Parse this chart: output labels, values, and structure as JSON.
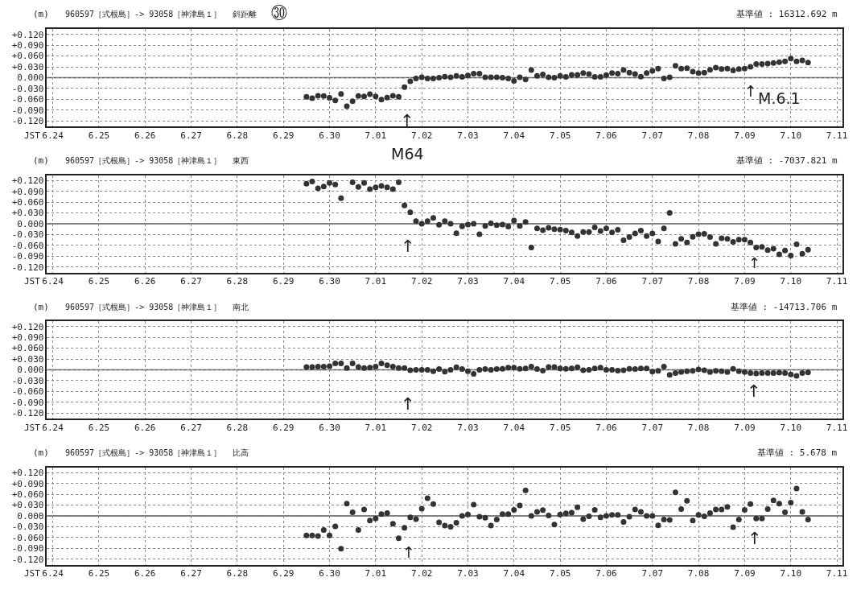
{
  "chart_data": [
    {
      "type": "scatter",
      "title": "960597［式根島］-> 93058［神津島１］",
      "subtitle": "斜距離",
      "ylabel": "(m)",
      "xlabel": "JST",
      "annotations": [
        "基準値 : 16312.692 m",
        "㉚",
        "↑",
        "M64",
        "↑",
        "M.6.1"
      ],
      "x": [
        "--06-29T12:00",
        "--06-29T15:00",
        "--06-29T18:00",
        "--06-29T21:00",
        "--06-30T00:00",
        "--06-30T03:00",
        "--06-30T06:00",
        "--06-30T09:00",
        "--06-30T12:00",
        "--06-30T15:00",
        "--06-30T18:00",
        "--06-30T21:00",
        "--07-01T00:00",
        "--07-01T03:00",
        "--07-01T06:00",
        "--07-01T09:00",
        "--07-01T12:00",
        "--07-01T15:00",
        "--07-01T18:00",
        "--07-01T21:00",
        "--07-02T00:00",
        "--07-02T03:00",
        "--07-02T06:00",
        "--07-02T09:00",
        "--07-02T12:00",
        "--07-02T15:00",
        "--07-02T18:00",
        "--07-02T21:00",
        "--07-03T00:00",
        "--07-03T03:00",
        "--07-03T06:00",
        "--07-03T09:00",
        "--07-03T12:00",
        "--07-03T15:00",
        "--07-03T18:00",
        "--07-03T21:00",
        "--07-04T00:00",
        "--07-04T03:00",
        "--07-04T06:00",
        "--07-04T09:00",
        "--07-04T12:00",
        "--07-04T15:00",
        "--07-04T18:00",
        "--07-04T21:00",
        "--07-05T00:00",
        "--07-05T03:00",
        "--07-05T06:00",
        "--07-05T09:00",
        "--07-05T12:00",
        "--07-05T15:00",
        "--07-05T18:00",
        "--07-05T21:00",
        "--07-06T00:00",
        "--07-06T03:00",
        "--07-06T06:00",
        "--07-06T09:00",
        "--07-06T12:00",
        "--07-06T15:00",
        "--07-06T18:00",
        "--07-06T21:00",
        "--07-07T00:00",
        "--07-07T03:00",
        "--07-07T06:00",
        "--07-07T09:00",
        "--07-07T12:00",
        "--07-07T15:00",
        "--07-07T18:00",
        "--07-07T21:00",
        "--07-08T00:00",
        "--07-08T03:00",
        "--07-08T06:00",
        "--07-08T09:00",
        "--07-08T12:00",
        "--07-08T15:00",
        "--07-08T18:00",
        "--07-08T21:00",
        "--07-09T00:00",
        "--07-09T03:00",
        "--07-09T06:00",
        "--07-09T09:00",
        "--07-09T12:00",
        "--07-09T15:00",
        "--07-09T18:00",
        "--07-09T21:00",
        "--07-10T00:00",
        "--07-10T03:00",
        "--07-10T06:00",
        "--07-10T09:00"
      ],
      "values": [
        -0.053,
        -0.057,
        -0.05,
        -0.051,
        -0.056,
        -0.063,
        -0.045,
        -0.079,
        -0.065,
        -0.051,
        -0.052,
        -0.046,
        -0.052,
        -0.061,
        -0.055,
        -0.05,
        -0.053,
        -0.026,
        -0.01,
        -0.002,
        0.001,
        -0.002,
        -0.002,
        0.0,
        0.003,
        0.001,
        0.005,
        0.002,
        0.006,
        0.011,
        0.011,
        0.001,
        0.001,
        0.001,
        0.0,
        -0.002,
        -0.009,
        0.001,
        -0.005,
        0.021,
        0.005,
        0.009,
        0.001,
        0.0,
        0.005,
        0.002,
        0.008,
        0.008,
        0.013,
        0.01,
        0.002,
        0.002,
        0.007,
        0.013,
        0.011,
        0.021,
        0.014,
        0.01,
        0.003,
        0.013,
        0.019,
        0.025,
        -0.002,
        0.001,
        0.033,
        0.025,
        0.026,
        0.017,
        0.013,
        0.014,
        0.022,
        0.028,
        0.024,
        0.025,
        0.02,
        0.024,
        0.025,
        0.03,
        0.038,
        0.038,
        0.039,
        0.041,
        0.043,
        0.045,
        0.053,
        0.045,
        0.048,
        0.042
      ],
      "color": "#333333",
      "marker": "circle",
      "xlim": [
        "--06-23T21:00",
        "--07-11T03:00"
      ],
      "xticks": [
        {
          "value": "--06-24",
          "label": "6.24"
        },
        {
          "value": "--06-25",
          "label": "6.25"
        },
        {
          "value": "--06-26",
          "label": "6.26"
        },
        {
          "value": "--06-27",
          "label": "6.27"
        },
        {
          "value": "--06-28",
          "label": "6.28"
        },
        {
          "value": "--06-29",
          "label": "6.29"
        },
        {
          "value": "--06-30",
          "label": "6.30"
        },
        {
          "value": "--07-01",
          "label": "7.01"
        },
        {
          "value": "--07-02",
          "label": "7.02"
        },
        {
          "value": "--07-03",
          "label": "7.03"
        },
        {
          "value": "--07-04",
          "label": "7.04"
        },
        {
          "value": "--07-05",
          "label": "7.05"
        },
        {
          "value": "--07-06",
          "label": "7.06"
        },
        {
          "value": "--07-07",
          "label": "7.07"
        },
        {
          "value": "--07-08",
          "label": "7.08"
        },
        {
          "value": "--07-09",
          "label": "7.09"
        },
        {
          "value": "--07-10",
          "label": "7.10"
        },
        {
          "value": "--07-11",
          "label": "7.11"
        }
      ],
      "ylim": [
        -0.135,
        0.135
      ],
      "yticks": [
        {
          "value": 0.12,
          "label": "+0.120"
        },
        {
          "value": 0.09,
          "label": "+0.090"
        },
        {
          "value": 0.06,
          "label": "+0.060"
        },
        {
          "value": 0.03,
          "label": "+0.030"
        },
        {
          "value": 0,
          "label": "0.000"
        },
        {
          "value": -0.03,
          "label": "-0.030"
        },
        {
          "value": -0.06,
          "label": "-0.060"
        },
        {
          "value": -0.09,
          "label": "-0.090"
        },
        {
          "value": -0.12,
          "label": "-0.120"
        }
      ],
      "grid": true,
      "ref_lines": [
        {
          "axis": "y",
          "value": 0,
          "color": "#555555"
        }
      ]
    },
    {
      "type": "scatter",
      "title": "960597［式根島］-> 93058［神津島１］",
      "subtitle": "東西",
      "ylabel": "(m)",
      "xlabel": "JST",
      "annotations": [
        "基準値 : -7037.821 m",
        "↑",
        "↑"
      ],
      "x": [
        "--06-29T12:00",
        "--06-29T15:00",
        "--06-29T18:00",
        "--06-29T21:00",
        "--06-30T00:00",
        "--06-30T03:00",
        "--06-30T06:00",
        "--06-30T09:00",
        "--06-30T12:00",
        "--06-30T15:00",
        "--06-30T18:00",
        "--06-30T21:00",
        "--07-01T00:00",
        "--07-01T03:00",
        "--07-01T06:00",
        "--07-01T09:00",
        "--07-01T12:00",
        "--07-01T15:00",
        "--07-01T18:00",
        "--07-01T21:00",
        "--07-02T00:00",
        "--07-02T03:00",
        "--07-02T06:00",
        "--07-02T09:00",
        "--07-02T12:00",
        "--07-02T15:00",
        "--07-02T18:00",
        "--07-02T21:00",
        "--07-03T00:00",
        "--07-03T03:00",
        "--07-03T06:00",
        "--07-03T09:00",
        "--07-03T12:00",
        "--07-03T15:00",
        "--07-03T18:00",
        "--07-03T21:00",
        "--07-04T00:00",
        "--07-04T03:00",
        "--07-04T06:00",
        "--07-04T09:00",
        "--07-04T12:00",
        "--07-04T15:00",
        "--07-04T18:00",
        "--07-04T21:00",
        "--07-05T00:00",
        "--07-05T03:00",
        "--07-05T06:00",
        "--07-05T09:00",
        "--07-05T12:00",
        "--07-05T15:00",
        "--07-05T18:00",
        "--07-05T21:00",
        "--07-06T00:00",
        "--07-06T03:00",
        "--07-06T06:00",
        "--07-06T09:00",
        "--07-06T12:00",
        "--07-06T15:00",
        "--07-06T18:00",
        "--07-06T21:00",
        "--07-07T00:00",
        "--07-07T03:00",
        "--07-07T06:00",
        "--07-07T09:00",
        "--07-07T12:00",
        "--07-07T15:00",
        "--07-07T18:00",
        "--07-07T21:00",
        "--07-08T00:00",
        "--07-08T03:00",
        "--07-08T06:00",
        "--07-08T09:00",
        "--07-08T12:00",
        "--07-08T15:00",
        "--07-08T18:00",
        "--07-08T21:00",
        "--07-09T00:00",
        "--07-09T03:00",
        "--07-09T06:00",
        "--07-09T09:00",
        "--07-09T12:00",
        "--07-09T15:00",
        "--07-09T18:00",
        "--07-09T21:00",
        "--07-10T00:00",
        "--07-10T03:00",
        "--07-10T06:00",
        "--07-10T09:00"
      ],
      "values": [
        0.111,
        0.117,
        0.098,
        0.103,
        0.113,
        0.109,
        0.071,
        null,
        0.115,
        0.102,
        0.113,
        0.096,
        0.101,
        0.105,
        0.101,
        0.096,
        0.115,
        0.051,
        0.032,
        0.007,
        0.0,
        0.007,
        0.016,
        -0.003,
        0.007,
        0.0,
        -0.026,
        -0.007,
        -0.002,
        0.0,
        -0.029,
        -0.006,
        0.001,
        -0.004,
        -0.002,
        -0.008,
        0.009,
        -0.006,
        0.005,
        -0.066,
        -0.013,
        -0.018,
        -0.011,
        -0.015,
        -0.016,
        -0.019,
        -0.024,
        -0.034,
        -0.023,
        -0.023,
        -0.01,
        -0.02,
        -0.013,
        -0.024,
        -0.017,
        -0.046,
        -0.037,
        -0.027,
        -0.019,
        -0.034,
        -0.027,
        -0.049,
        -0.013,
        0.03,
        -0.056,
        -0.042,
        -0.052,
        -0.036,
        -0.029,
        -0.028,
        -0.037,
        -0.056,
        -0.04,
        -0.042,
        -0.05,
        -0.044,
        -0.044,
        -0.052,
        -0.066,
        -0.064,
        -0.073,
        -0.069,
        -0.085,
        -0.074,
        -0.088,
        -0.057,
        -0.083,
        -0.072
      ],
      "color": "#333333",
      "marker": "circle",
      "xlim": [
        "--06-23T21:00",
        "--07-11T03:00"
      ],
      "xticks": [
        {
          "value": "--06-24",
          "label": "6.24"
        },
        {
          "value": "--06-25",
          "label": "6.25"
        },
        {
          "value": "--06-26",
          "label": "6.26"
        },
        {
          "value": "--06-27",
          "label": "6.27"
        },
        {
          "value": "--06-28",
          "label": "6.28"
        },
        {
          "value": "--06-29",
          "label": "6.29"
        },
        {
          "value": "--06-30",
          "label": "6.30"
        },
        {
          "value": "--07-01",
          "label": "7.01"
        },
        {
          "value": "--07-02",
          "label": "7.02"
        },
        {
          "value": "--07-03",
          "label": "7.03"
        },
        {
          "value": "--07-04",
          "label": "7.04"
        },
        {
          "value": "--07-05",
          "label": "7.05"
        },
        {
          "value": "--07-06",
          "label": "7.06"
        },
        {
          "value": "--07-07",
          "label": "7.07"
        },
        {
          "value": "--07-08",
          "label": "7.08"
        },
        {
          "value": "--07-09",
          "label": "7.09"
        },
        {
          "value": "--07-10",
          "label": "7.10"
        },
        {
          "value": "--07-11",
          "label": "7.11"
        }
      ],
      "ylim": [
        -0.135,
        0.135
      ],
      "yticks": [
        {
          "value": 0.12,
          "label": "+0.120"
        },
        {
          "value": 0.09,
          "label": "+0.090"
        },
        {
          "value": 0.06,
          "label": "+0.060"
        },
        {
          "value": 0.03,
          "label": "+0.030"
        },
        {
          "value": 0,
          "label": "0.000"
        },
        {
          "value": -0.03,
          "label": "-0.030"
        },
        {
          "value": -0.06,
          "label": "-0.060"
        },
        {
          "value": -0.09,
          "label": "-0.090"
        },
        {
          "value": -0.12,
          "label": "-0.120"
        }
      ],
      "grid": true,
      "ref_lines": [
        {
          "axis": "y",
          "value": 0,
          "color": "#555555"
        }
      ]
    },
    {
      "type": "scatter",
      "title": "960597［式根島］-> 93058［神津島１］",
      "subtitle": "南北",
      "ylabel": "(m)",
      "xlabel": "JST",
      "annotations": [
        "基準値 : -14713.706 m",
        "↑",
        "↑"
      ],
      "x": [
        "--06-29T12:00",
        "--06-29T15:00",
        "--06-29T18:00",
        "--06-29T21:00",
        "--06-30T00:00",
        "--06-30T03:00",
        "--06-30T06:00",
        "--06-30T09:00",
        "--06-30T12:00",
        "--06-30T15:00",
        "--06-30T18:00",
        "--06-30T21:00",
        "--07-01T00:00",
        "--07-01T03:00",
        "--07-01T06:00",
        "--07-01T09:00",
        "--07-01T12:00",
        "--07-01T15:00",
        "--07-01T18:00",
        "--07-01T21:00",
        "--07-02T00:00",
        "--07-02T03:00",
        "--07-02T06:00",
        "--07-02T09:00",
        "--07-02T12:00",
        "--07-02T15:00",
        "--07-02T18:00",
        "--07-02T21:00",
        "--07-03T00:00",
        "--07-03T03:00",
        "--07-03T06:00",
        "--07-03T09:00",
        "--07-03T12:00",
        "--07-03T15:00",
        "--07-03T18:00",
        "--07-03T21:00",
        "--07-04T00:00",
        "--07-04T03:00",
        "--07-04T06:00",
        "--07-04T09:00",
        "--07-04T12:00",
        "--07-04T15:00",
        "--07-04T18:00",
        "--07-04T21:00",
        "--07-05T00:00",
        "--07-05T03:00",
        "--07-05T06:00",
        "--07-05T09:00",
        "--07-05T12:00",
        "--07-05T15:00",
        "--07-05T18:00",
        "--07-05T21:00",
        "--07-06T00:00",
        "--07-06T03:00",
        "--07-06T06:00",
        "--07-06T09:00",
        "--07-06T12:00",
        "--07-06T15:00",
        "--07-06T18:00",
        "--07-06T21:00",
        "--07-07T00:00",
        "--07-07T03:00",
        "--07-07T06:00",
        "--07-07T09:00",
        "--07-07T12:00",
        "--07-07T15:00",
        "--07-07T18:00",
        "--07-07T21:00",
        "--07-08T00:00",
        "--07-08T03:00",
        "--07-08T06:00",
        "--07-08T09:00",
        "--07-08T12:00",
        "--07-08T15:00",
        "--07-08T18:00",
        "--07-08T21:00",
        "--07-09T00:00",
        "--07-09T03:00",
        "--07-09T06:00",
        "--07-09T09:00",
        "--07-09T12:00",
        "--07-09T15:00",
        "--07-09T18:00",
        "--07-09T21:00",
        "--07-10T00:00",
        "--07-10T03:00",
        "--07-10T06:00",
        "--07-10T09:00"
      ],
      "values": [
        0.008,
        0.008,
        0.009,
        0.009,
        0.01,
        0.018,
        0.018,
        0.005,
        0.018,
        0.008,
        0.005,
        0.006,
        0.009,
        0.018,
        0.013,
        0.009,
        0.005,
        0.005,
        -0.001,
        0.0,
        0.0,
        0.0,
        -0.004,
        0.002,
        -0.005,
        0.0,
        0.007,
        0.002,
        -0.004,
        -0.011,
        0.0,
        0.002,
        0.0,
        0.002,
        0.003,
        0.006,
        0.006,
        0.003,
        0.004,
        0.009,
        0.002,
        -0.002,
        0.008,
        0.008,
        0.004,
        0.003,
        0.004,
        0.007,
        -0.001,
        0.0,
        0.004,
        0.006,
        0.0,
        0.0,
        -0.002,
        -0.001,
        0.003,
        0.002,
        0.004,
        0.004,
        -0.005,
        -0.003,
        0.009,
        -0.014,
        -0.009,
        -0.006,
        -0.004,
        -0.003,
        0.001,
        -0.001,
        -0.006,
        -0.003,
        -0.004,
        -0.006,
        0.003,
        -0.004,
        -0.006,
        -0.009,
        -0.01,
        -0.009,
        -0.009,
        -0.009,
        -0.008,
        -0.009,
        -0.013,
        -0.017,
        -0.009,
        -0.007
      ],
      "color": "#333333",
      "marker": "circle",
      "xlim": [
        "--06-23T21:00",
        "--07-11T03:00"
      ],
      "xticks": [
        {
          "value": "--06-24",
          "label": "6.24"
        },
        {
          "value": "--06-25",
          "label": "6.25"
        },
        {
          "value": "--06-26",
          "label": "6.26"
        },
        {
          "value": "--06-27",
          "label": "6.27"
        },
        {
          "value": "--06-28",
          "label": "6.28"
        },
        {
          "value": "--06-29",
          "label": "6.29"
        },
        {
          "value": "--06-30",
          "label": "6.30"
        },
        {
          "value": "--07-01",
          "label": "7.01"
        },
        {
          "value": "--07-02",
          "label": "7.02"
        },
        {
          "value": "--07-03",
          "label": "7.03"
        },
        {
          "value": "--07-04",
          "label": "7.04"
        },
        {
          "value": "--07-05",
          "label": "7.05"
        },
        {
          "value": "--07-06",
          "label": "7.06"
        },
        {
          "value": "--07-07",
          "label": "7.07"
        },
        {
          "value": "--07-08",
          "label": "7.08"
        },
        {
          "value": "--07-09",
          "label": "7.09"
        },
        {
          "value": "--07-10",
          "label": "7.10"
        },
        {
          "value": "--07-11",
          "label": "7.11"
        }
      ],
      "ylim": [
        -0.135,
        0.135
      ],
      "yticks": [
        {
          "value": 0.12,
          "label": "+0.120"
        },
        {
          "value": 0.09,
          "label": "+0.090"
        },
        {
          "value": 0.06,
          "label": "+0.060"
        },
        {
          "value": 0.03,
          "label": "+0.030"
        },
        {
          "value": 0,
          "label": "0.000"
        },
        {
          "value": -0.03,
          "label": "-0.030"
        },
        {
          "value": -0.06,
          "label": "-0.060"
        },
        {
          "value": -0.09,
          "label": "-0.090"
        },
        {
          "value": -0.12,
          "label": "-0.120"
        }
      ],
      "grid": true,
      "ref_lines": [
        {
          "axis": "y",
          "value": 0,
          "color": "#555555"
        }
      ]
    },
    {
      "type": "scatter",
      "title": "960597［式根島］-> 93058［神津島１］",
      "subtitle": "比高",
      "ylabel": "(m)",
      "xlabel": "JST",
      "annotations": [
        "基準値 : 5.678 m",
        "↑",
        "↑"
      ],
      "x": [
        "--06-29T12:00",
        "--06-29T15:00",
        "--06-29T18:00",
        "--06-29T21:00",
        "--06-30T00:00",
        "--06-30T03:00",
        "--06-30T06:00",
        "--06-30T09:00",
        "--06-30T12:00",
        "--06-30T15:00",
        "--06-30T18:00",
        "--06-30T21:00",
        "--07-01T00:00",
        "--07-01T03:00",
        "--07-01T06:00",
        "--07-01T09:00",
        "--07-01T12:00",
        "--07-01T15:00",
        "--07-01T18:00",
        "--07-01T21:00",
        "--07-02T00:00",
        "--07-02T03:00",
        "--07-02T06:00",
        "--07-02T09:00",
        "--07-02T12:00",
        "--07-02T15:00",
        "--07-02T18:00",
        "--07-02T21:00",
        "--07-03T00:00",
        "--07-03T03:00",
        "--07-03T06:00",
        "--07-03T09:00",
        "--07-03T12:00",
        "--07-03T15:00",
        "--07-03T18:00",
        "--07-03T21:00",
        "--07-04T00:00",
        "--07-04T03:00",
        "--07-04T06:00",
        "--07-04T09:00",
        "--07-04T12:00",
        "--07-04T15:00",
        "--07-04T18:00",
        "--07-04T21:00",
        "--07-05T00:00",
        "--07-05T03:00",
        "--07-05T06:00",
        "--07-05T09:00",
        "--07-05T12:00",
        "--07-05T15:00",
        "--07-05T18:00",
        "--07-05T21:00",
        "--07-06T00:00",
        "--07-06T03:00",
        "--07-06T06:00",
        "--07-06T09:00",
        "--07-06T12:00",
        "--07-06T15:00",
        "--07-06T18:00",
        "--07-06T21:00",
        "--07-07T00:00",
        "--07-07T03:00",
        "--07-07T06:00",
        "--07-07T09:00",
        "--07-07T12:00",
        "--07-07T15:00",
        "--07-07T18:00",
        "--07-07T21:00",
        "--07-08T00:00",
        "--07-08T03:00",
        "--07-08T06:00",
        "--07-08T09:00",
        "--07-08T12:00",
        "--07-08T15:00",
        "--07-08T18:00",
        "--07-08T21:00",
        "--07-09T00:00",
        "--07-09T03:00",
        "--07-09T06:00",
        "--07-09T09:00",
        "--07-09T12:00",
        "--07-09T15:00",
        "--07-09T18:00",
        "--07-09T21:00",
        "--07-10T00:00",
        "--07-10T03:00",
        "--07-10T06:00",
        "--07-10T09:00"
      ],
      "values": [
        -0.054,
        -0.054,
        -0.056,
        -0.039,
        -0.054,
        -0.029,
        -0.091,
        0.034,
        0.01,
        -0.039,
        0.018,
        -0.013,
        -0.007,
        0.005,
        0.008,
        -0.022,
        -0.062,
        -0.033,
        -0.004,
        -0.009,
        0.02,
        0.049,
        0.033,
        -0.018,
        -0.027,
        -0.03,
        -0.019,
        0.0,
        0.004,
        0.031,
        -0.002,
        -0.005,
        -0.027,
        -0.01,
        0.005,
        0.005,
        0.017,
        0.029,
        0.071,
        0.0,
        0.011,
        0.016,
        0.001,
        -0.024,
        0.004,
        0.007,
        0.009,
        0.024,
        -0.009,
        -0.001,
        0.017,
        -0.004,
        0.0,
        0.003,
        0.003,
        -0.017,
        -0.002,
        0.018,
        0.011,
        0.0,
        0.0,
        -0.026,
        -0.01,
        -0.011,
        0.065,
        0.019,
        0.042,
        -0.013,
        0.003,
        -0.001,
        0.008,
        0.018,
        0.018,
        0.025,
        -0.031,
        -0.01,
        0.017,
        0.033,
        -0.007,
        -0.007,
        0.019,
        0.043,
        0.034,
        0.01,
        0.037,
        0.076,
        0.011,
        -0.01
      ],
      "color": "#333333",
      "marker": "circle",
      "xlim": [
        "--06-23T21:00",
        "--07-11T03:00"
      ],
      "xticks": [
        {
          "value": "--06-24",
          "label": "6.24"
        },
        {
          "value": "--06-25",
          "label": "6.25"
        },
        {
          "value": "--06-26",
          "label": "6.26"
        },
        {
          "value": "--06-27",
          "label": "6.27"
        },
        {
          "value": "--06-28",
          "label": "6.28"
        },
        {
          "value": "--06-29",
          "label": "6.29"
        },
        {
          "value": "--06-30",
          "label": "6.30"
        },
        {
          "value": "--07-01",
          "label": "7.01"
        },
        {
          "value": "--07-02",
          "label": "7.02"
        },
        {
          "value": "--07-03",
          "label": "7.03"
        },
        {
          "value": "--07-04",
          "label": "7.04"
        },
        {
          "value": "--07-05",
          "label": "7.05"
        },
        {
          "value": "--07-06",
          "label": "7.06"
        },
        {
          "value": "--07-07",
          "label": "7.07"
        },
        {
          "value": "--07-08",
          "label": "7.08"
        },
        {
          "value": "--07-09",
          "label": "7.09"
        },
        {
          "value": "--07-10",
          "label": "7.10"
        },
        {
          "value": "--07-11",
          "label": "7.11"
        }
      ],
      "ylim": [
        -0.135,
        0.135
      ],
      "yticks": [
        {
          "value": 0.12,
          "label": "+0.120"
        },
        {
          "value": 0.09,
          "label": "+0.090"
        },
        {
          "value": 0.06,
          "label": "+0.060"
        },
        {
          "value": 0.03,
          "label": "+0.030"
        },
        {
          "value": 0,
          "label": "0.000"
        },
        {
          "value": -0.03,
          "label": "-0.030"
        },
        {
          "value": -0.06,
          "label": "-0.060"
        },
        {
          "value": -0.09,
          "label": "-0.090"
        },
        {
          "value": -0.12,
          "label": "-0.120"
        }
      ],
      "grid": true,
      "ref_lines": [
        {
          "axis": "y",
          "value": 0,
          "color": "#555555"
        }
      ]
    }
  ]
}
